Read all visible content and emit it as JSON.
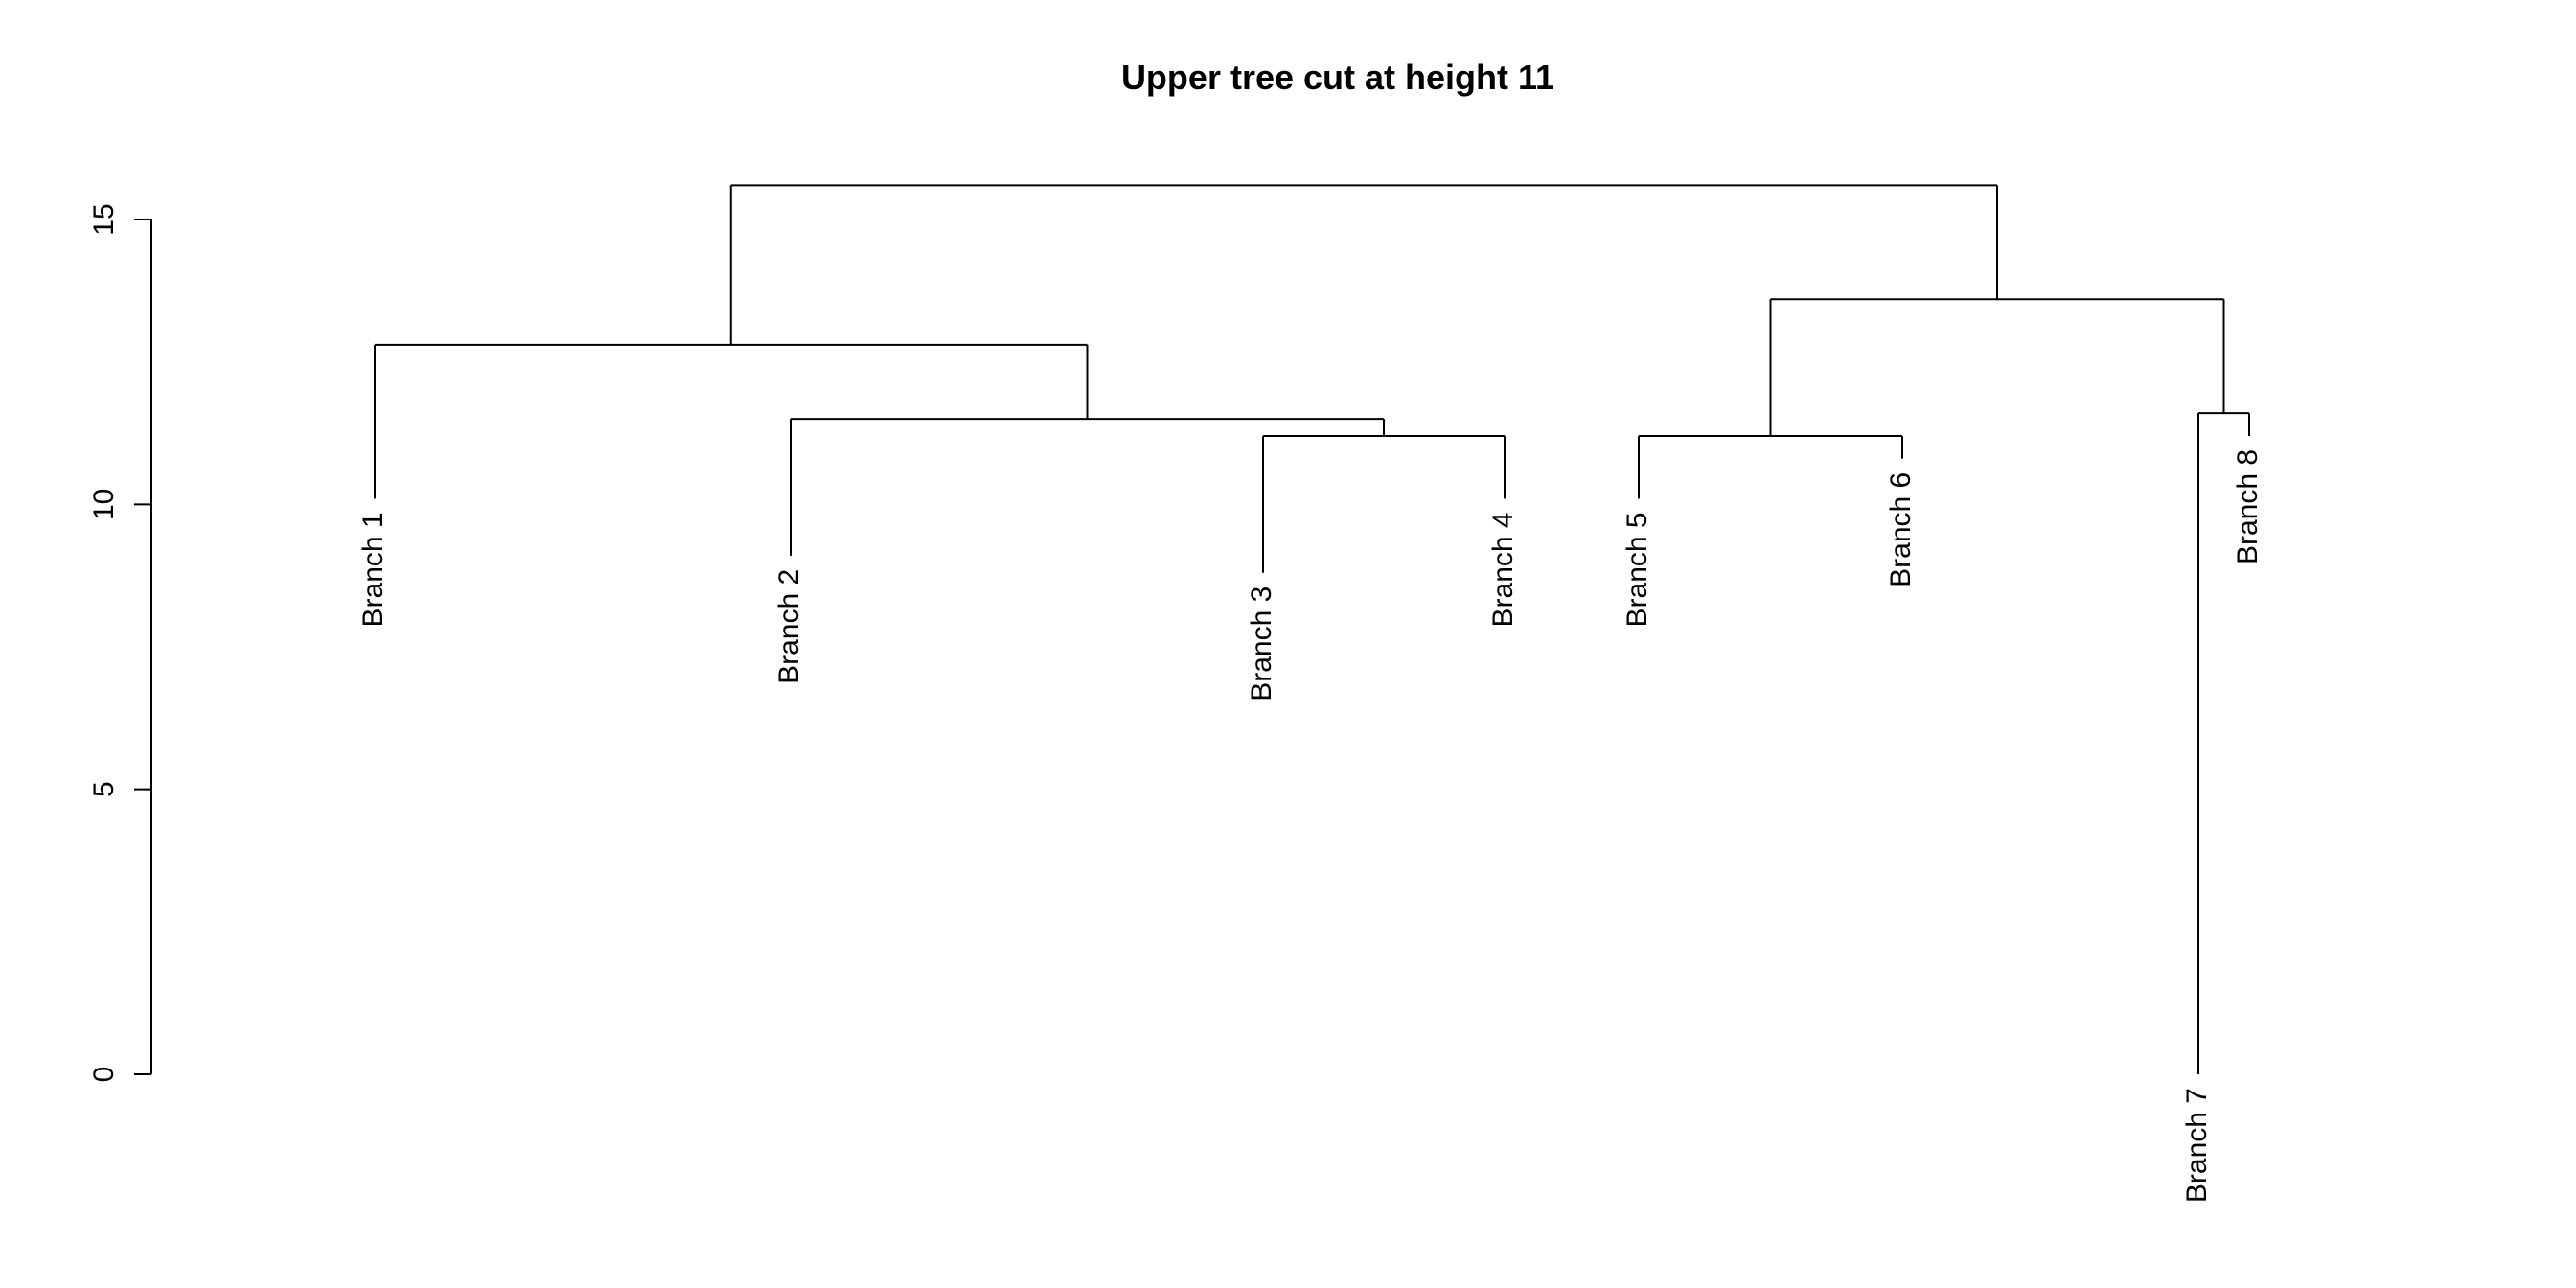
{
  "chart_data": {
    "type": "dendrogram",
    "title": "Upper tree cut at height 11",
    "xlabel": "",
    "ylabel": "",
    "ylim": [
      0,
      15
    ],
    "yticks": [
      0,
      5,
      10,
      15
    ],
    "leaves": [
      {
        "label": "Branch 1",
        "height": 10.1
      },
      {
        "label": "Branch 2",
        "height": 9.1
      },
      {
        "label": "Branch 3",
        "height": 8.8
      },
      {
        "label": "Branch 4",
        "height": 10.1
      },
      {
        "label": "Branch 5",
        "height": 10.1
      },
      {
        "label": "Branch 6",
        "height": 10.8
      },
      {
        "label": "Branch 7",
        "height": 0.0
      },
      {
        "label": "Branch 8",
        "height": 11.2
      }
    ],
    "merges": [
      {
        "left": "Branch 3",
        "right": "Branch 4",
        "height": 11.2
      },
      {
        "left": "Branch 2",
        "right": "m1",
        "height": 11.5
      },
      {
        "left": "Branch 1",
        "right": "m2",
        "height": 12.8
      },
      {
        "left": "Branch 5",
        "right": "Branch 6",
        "height": 11.2
      },
      {
        "left": "Branch 7",
        "right": "Branch 8",
        "height": 11.6
      },
      {
        "left": "m4",
        "right": "m5",
        "height": 13.6
      },
      {
        "left": "m3",
        "right": "m6",
        "height": 15.6
      }
    ],
    "grid": false,
    "legend": "none"
  }
}
